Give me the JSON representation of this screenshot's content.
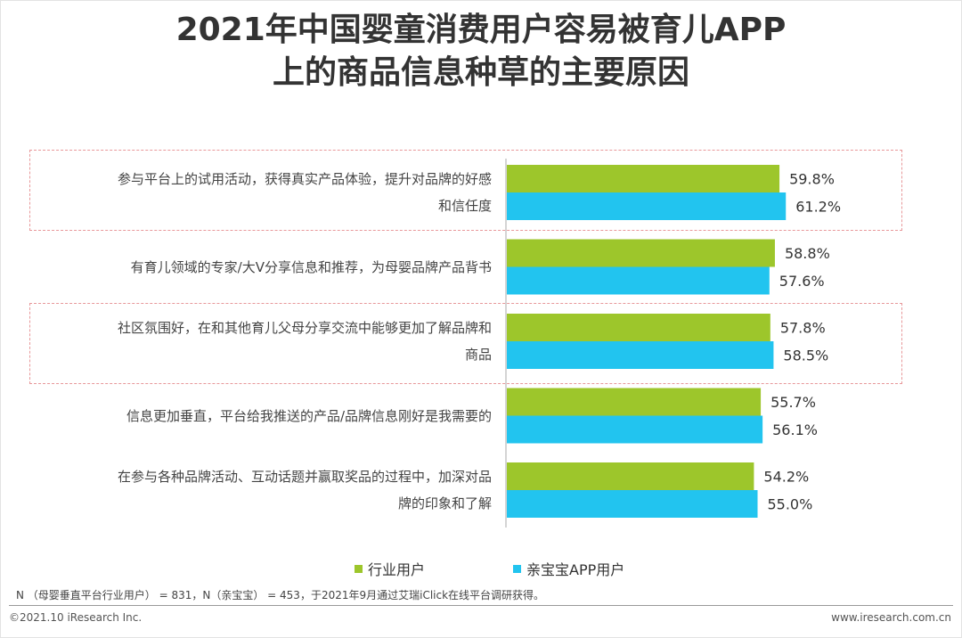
{
  "title_line1": "2021年中国婴童消费用户容易被育儿APP",
  "title_line2": "上的商品信息种草的主要原因",
  "chart_data": {
    "type": "bar",
    "orientation": "horizontal",
    "categories": [
      [
        "参与平台上的试用活动，获得真实产品体验，提升对品牌的好感",
        "和信任度"
      ],
      [
        "有育儿领域的专家/大V分享信息和推荐，为母婴品牌产品背书"
      ],
      [
        "社区氛围好，在和其他育儿父母分享交流中能够更加了解品牌和",
        "商品"
      ],
      [
        "信息更加垂直，平台给我推送的产品/品牌信息刚好是我需要的"
      ],
      [
        "在参与各种品牌活动、互动话题并赢取奖品的过程中，加深对品",
        "牌的印象和了解"
      ]
    ],
    "series": [
      {
        "name": "行业用户",
        "color": "#9dc62b",
        "values": [
          59.8,
          58.8,
          57.8,
          55.7,
          54.2
        ],
        "labels": [
          "59.8%",
          "58.8%",
          "57.8%",
          "55.7%",
          "54.2%"
        ]
      },
      {
        "name": "亲宝宝APP用户",
        "color": "#22c4ef",
        "values": [
          61.2,
          57.6,
          58.5,
          56.1,
          55.0
        ],
        "labels": [
          "61.2%",
          "57.6%",
          "58.5%",
          "56.1%",
          "55.0%"
        ]
      }
    ],
    "highlighted_categories": [
      0,
      2
    ],
    "xlim": [
      0,
      64
    ]
  },
  "legend": {
    "series1": "行业用户",
    "series2": "亲宝宝APP用户"
  },
  "note": "N （母婴垂直平台行业用户） = 831，N（亲宝宝） = 453，于2021年9月通过艾瑞iClick在线平台调研获得。",
  "footer": {
    "copyright": "©2021.10 iResearch Inc.",
    "website": "www.iresearch.com.cn"
  }
}
